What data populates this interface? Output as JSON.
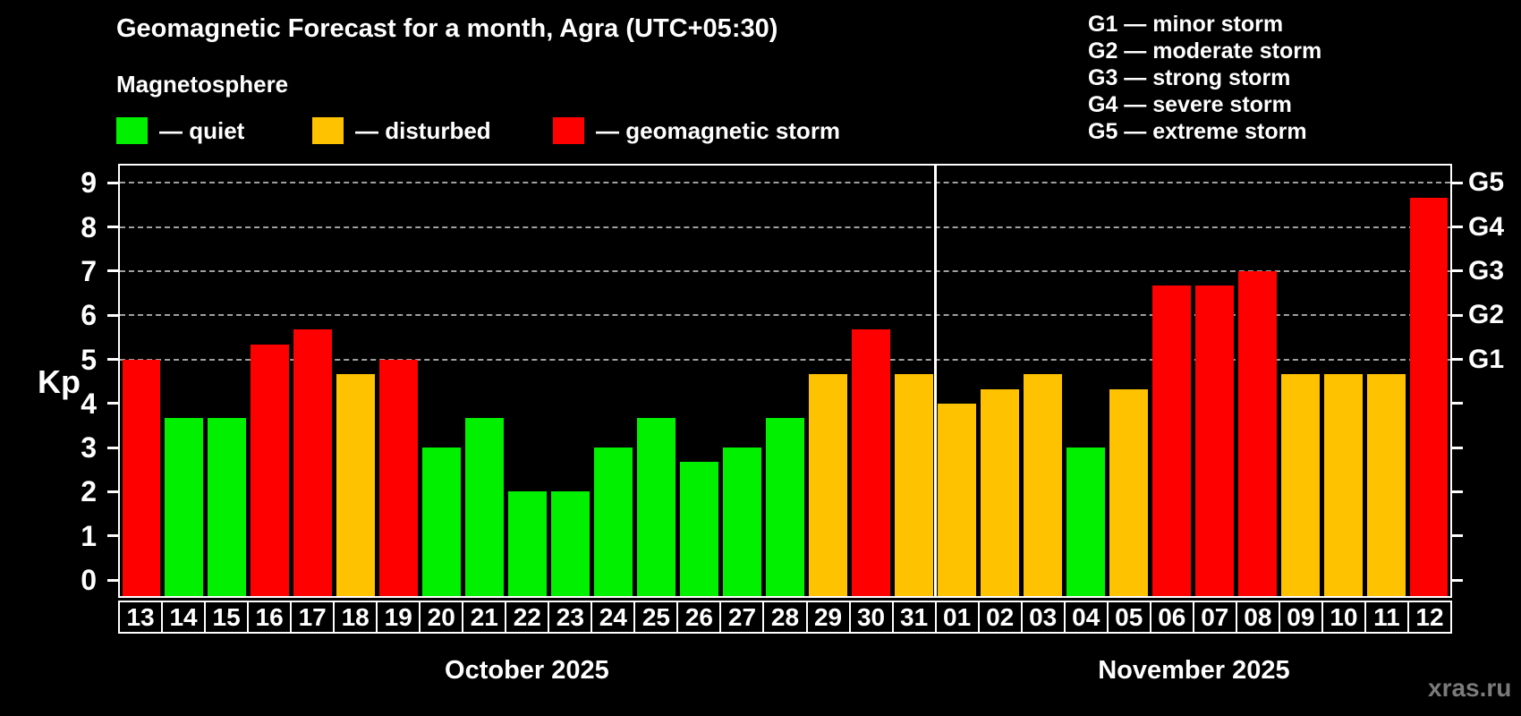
{
  "title": "Geomagnetic Forecast for a month, Agra (UTC+05:30)",
  "subtitle": "Magnetosphere",
  "legend": {
    "quiet": "— quiet",
    "disturbed": "— disturbed",
    "storm": "— geomagnetic storm"
  },
  "g_legend": [
    "G1 — minor storm",
    "G2 — moderate storm",
    "G3 — strong storm",
    "G4 — severe storm",
    "G5 — extreme storm"
  ],
  "axis": {
    "y_label": "Kp",
    "y_ticks": [
      "0",
      "1",
      "2",
      "3",
      "4",
      "5",
      "6",
      "7",
      "8",
      "9"
    ],
    "right_labels": [
      {
        "kp": 5,
        "label": "G1"
      },
      {
        "kp": 6,
        "label": "G2"
      },
      {
        "kp": 7,
        "label": "G3"
      },
      {
        "kp": 8,
        "label": "G4"
      },
      {
        "kp": 9,
        "label": "G5"
      }
    ]
  },
  "watermark": "xras.ru",
  "colors": {
    "quiet": "#00f000",
    "disturbed": "#ffc200",
    "storm": "#ff0000",
    "background": "#000000",
    "grid": "#a0a0a0",
    "axis": "#ffffff",
    "separator": "#ffffff",
    "watermark": "#7b7b7b"
  },
  "chart_data": {
    "type": "bar",
    "title": "Geomagnetic Forecast for a month, Agra (UTC+05:30)",
    "ylabel": "Kp",
    "ylim": [
      0,
      9
    ],
    "grid_levels_kp": [
      5,
      6,
      7,
      8,
      9
    ],
    "legend_position": "top-left",
    "categories": [
      "13",
      "14",
      "15",
      "16",
      "17",
      "18",
      "19",
      "20",
      "21",
      "22",
      "23",
      "24",
      "25",
      "26",
      "27",
      "28",
      "29",
      "30",
      "31",
      "01",
      "02",
      "03",
      "04",
      "05",
      "06",
      "07",
      "08",
      "09",
      "10",
      "11",
      "12"
    ],
    "values": [
      5,
      3.67,
      3.67,
      5.33,
      5.67,
      4.67,
      5,
      3,
      3.67,
      2,
      2,
      3,
      3.67,
      2.67,
      3,
      3.67,
      4.67,
      5.67,
      4.67,
      4,
      4.33,
      4.67,
      3,
      4.33,
      6.67,
      6.67,
      7,
      4.67,
      4.67,
      4.67,
      8.67
    ],
    "levels": [
      "storm",
      "quiet",
      "quiet",
      "storm",
      "storm",
      "disturbed",
      "storm",
      "quiet",
      "quiet",
      "quiet",
      "quiet",
      "quiet",
      "quiet",
      "quiet",
      "quiet",
      "quiet",
      "disturbed",
      "storm",
      "disturbed",
      "disturbed",
      "disturbed",
      "disturbed",
      "quiet",
      "disturbed",
      "storm",
      "storm",
      "storm",
      "disturbed",
      "disturbed",
      "disturbed",
      "storm"
    ],
    "months": [
      {
        "label": "October 2025",
        "days": 19
      },
      {
        "label": "November 2025",
        "days": 12
      }
    ]
  }
}
